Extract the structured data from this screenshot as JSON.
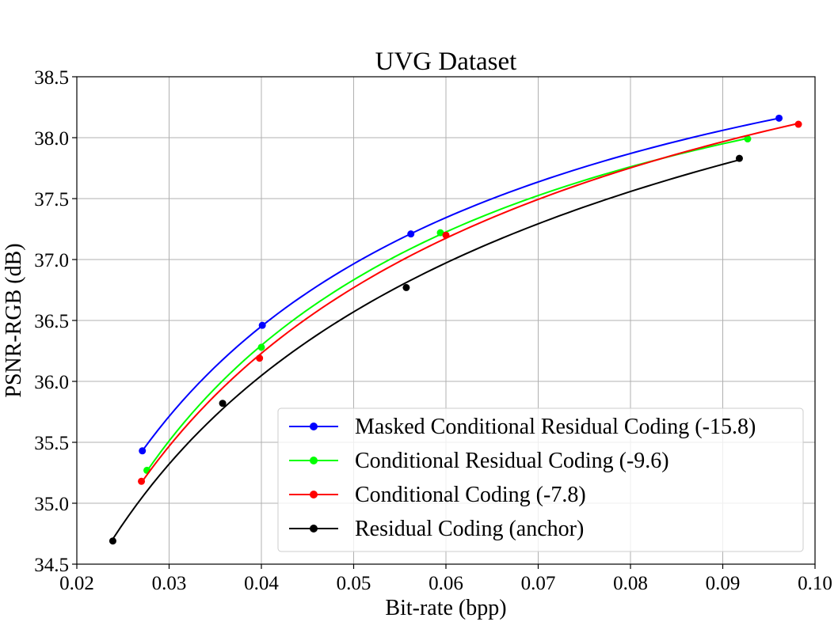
{
  "chart_data": {
    "type": "line",
    "title": "UVG Dataset",
    "xlabel": "Bit-rate (bpp)",
    "ylabel": "PSNR-RGB (dB)",
    "xlim": [
      0.02,
      0.1
    ],
    "ylim": [
      34.5,
      38.5
    ],
    "xticks": [
      0.02,
      0.03,
      0.04,
      0.05,
      0.06,
      0.07,
      0.08,
      0.09,
      0.1
    ],
    "xtick_labels": [
      "0.02",
      "0.03",
      "0.04",
      "0.05",
      "0.06",
      "0.07",
      "0.08",
      "0.09",
      "0.10"
    ],
    "yticks": [
      34.5,
      35.0,
      35.5,
      36.0,
      36.5,
      37.0,
      37.5,
      38.0,
      38.5
    ],
    "ytick_labels": [
      "34.5",
      "35.0",
      "35.5",
      "36.0",
      "36.5",
      "37.0",
      "37.5",
      "38.0",
      "38.5"
    ],
    "grid": true,
    "legend_position": "lower-right",
    "series": [
      {
        "name": "Masked Conditional Residual Coding (-15.8)",
        "color": "#0000ff",
        "x": [
          0.0271,
          0.0401,
          0.0562,
          0.0961
        ],
        "y": [
          35.43,
          36.46,
          37.21,
          38.16
        ]
      },
      {
        "name": "Conditional Residual Coding (-9.6)",
        "color": "#00ff00",
        "x": [
          0.0276,
          0.04,
          0.0594,
          0.0927
        ],
        "y": [
          35.27,
          36.28,
          37.22,
          37.99
        ]
      },
      {
        "name": "Conditional Coding (-7.8)",
        "color": "#ff0000",
        "x": [
          0.027,
          0.0398,
          0.06,
          0.0982
        ],
        "y": [
          35.18,
          36.19,
          37.2,
          38.11
        ]
      },
      {
        "name": "Residual Coding (anchor)",
        "color": "#000000",
        "x": [
          0.0239,
          0.0358,
          0.0557,
          0.0918
        ],
        "y": [
          34.69,
          35.82,
          36.77,
          37.83
        ]
      }
    ]
  }
}
